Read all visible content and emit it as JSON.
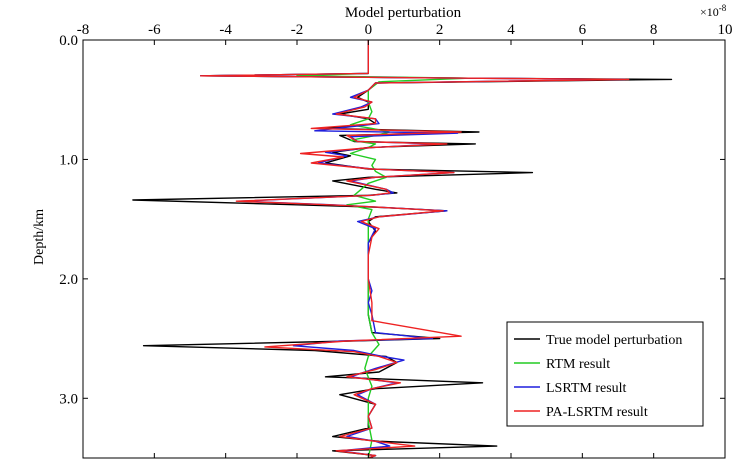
{
  "chart_data": {
    "type": "line",
    "xlabel": "Model perturbation",
    "x_exponent_base": "×10",
    "x_exponent_power": "-8",
    "ylabel": "Depth/km",
    "xlim": [
      -8,
      10
    ],
    "ylim": [
      0.0,
      3.5
    ],
    "y_inverted": true,
    "x_axis_position": "top",
    "grid": false,
    "legend_position": "bottom-right",
    "x_ticks": [
      -8,
      -6,
      -4,
      -2,
      0,
      2,
      4,
      6,
      8,
      10
    ],
    "x_tick_labels": [
      "-8",
      "-6",
      "-4",
      "-2",
      "0",
      "2",
      "4",
      "6",
      "8",
      "10"
    ],
    "y_ticks": [
      0.0,
      1.0,
      2.0,
      3.0
    ],
    "y_tick_labels": [
      "0.0",
      "1.0",
      "2.0",
      "3.0"
    ],
    "series": [
      {
        "name": "True model perturbation",
        "color": "#000000",
        "points": [
          [
            0,
            0
          ],
          [
            0,
            0.28
          ],
          [
            -4.7,
            0.3
          ],
          [
            2.8,
            0.32
          ],
          [
            8.5,
            0.33
          ],
          [
            0.2,
            0.36
          ],
          [
            0,
            0.42
          ],
          [
            -0.3,
            0.48
          ],
          [
            0,
            0.52
          ],
          [
            0,
            0.58
          ],
          [
            -0.8,
            0.62
          ],
          [
            0,
            0.66
          ],
          [
            0.2,
            0.7
          ],
          [
            -1.2,
            0.74
          ],
          [
            3.1,
            0.77
          ],
          [
            -0.8,
            0.8
          ],
          [
            -0.4,
            0.85
          ],
          [
            3.0,
            0.87
          ],
          [
            0,
            0.9
          ],
          [
            -1.0,
            0.94
          ],
          [
            -0.5,
            0.97
          ],
          [
            -1.2,
            1.03
          ],
          [
            0,
            1.08
          ],
          [
            4.6,
            1.11
          ],
          [
            0,
            1.15
          ],
          [
            -1.0,
            1.18
          ],
          [
            0.2,
            1.25
          ],
          [
            0.8,
            1.28
          ],
          [
            0,
            1.3
          ],
          [
            -6.6,
            1.34
          ],
          [
            -2.0,
            1.38
          ],
          [
            0.2,
            1.4
          ],
          [
            2.2,
            1.43
          ],
          [
            0.2,
            1.48
          ],
          [
            0,
            1.52
          ],
          [
            0.2,
            1.6
          ],
          [
            0,
            1.7
          ],
          [
            0,
            2.0
          ],
          [
            0,
            2.3
          ],
          [
            0.1,
            2.45
          ],
          [
            2.0,
            2.5
          ],
          [
            -0.5,
            2.52
          ],
          [
            -6.3,
            2.56
          ],
          [
            -1.5,
            2.6
          ],
          [
            0.5,
            2.65
          ],
          [
            0.8,
            2.7
          ],
          [
            0.3,
            2.78
          ],
          [
            -1.2,
            2.82
          ],
          [
            3.2,
            2.87
          ],
          [
            0.2,
            2.92
          ],
          [
            -0.8,
            2.97
          ],
          [
            0.2,
            3.05
          ],
          [
            0,
            3.15
          ],
          [
            0,
            3.25
          ],
          [
            -1.0,
            3.32
          ],
          [
            0.3,
            3.36
          ],
          [
            3.6,
            3.4
          ],
          [
            -1.0,
            3.44
          ],
          [
            0.2,
            3.48
          ],
          [
            0,
            3.5
          ]
        ]
      },
      {
        "name": "RTM result",
        "color": "#22cc22",
        "points": [
          [
            0,
            0
          ],
          [
            0,
            0.28
          ],
          [
            -2.0,
            0.3
          ],
          [
            2.8,
            0.32
          ],
          [
            0.3,
            0.35
          ],
          [
            0,
            0.42
          ],
          [
            0,
            0.52
          ],
          [
            0.1,
            0.6
          ],
          [
            0,
            0.66
          ],
          [
            -0.5,
            0.71
          ],
          [
            0.1,
            0.74
          ],
          [
            0.6,
            0.77
          ],
          [
            0.2,
            0.8
          ],
          [
            -0.5,
            0.84
          ],
          [
            0.2,
            0.87
          ],
          [
            0,
            0.9
          ],
          [
            -0.5,
            0.95
          ],
          [
            0.2,
            1.0
          ],
          [
            0.1,
            1.05
          ],
          [
            0.2,
            1.1
          ],
          [
            0.5,
            1.15
          ],
          [
            0,
            1.2
          ],
          [
            -0.4,
            1.3
          ],
          [
            0.2,
            1.35
          ],
          [
            -0.6,
            1.38
          ],
          [
            0.1,
            1.42
          ],
          [
            0,
            1.5
          ],
          [
            0,
            1.7
          ],
          [
            0,
            2.0
          ],
          [
            0,
            2.3
          ],
          [
            0.1,
            2.45
          ],
          [
            0.3,
            2.55
          ],
          [
            0,
            2.65
          ],
          [
            -0.1,
            2.75
          ],
          [
            0.1,
            2.9
          ],
          [
            0,
            3.0
          ],
          [
            0,
            3.2
          ],
          [
            0.1,
            3.35
          ],
          [
            0,
            3.5
          ]
        ]
      },
      {
        "name": "LSRTM result",
        "color": "#1f1fdd",
        "points": [
          [
            0,
            0
          ],
          [
            0,
            0.28
          ],
          [
            -4.7,
            0.3
          ],
          [
            2.8,
            0.32
          ],
          [
            7.2,
            0.33
          ],
          [
            0.2,
            0.36
          ],
          [
            0,
            0.42
          ],
          [
            -0.5,
            0.48
          ],
          [
            0.1,
            0.52
          ],
          [
            -0.2,
            0.56
          ],
          [
            -1.0,
            0.62
          ],
          [
            0.2,
            0.66
          ],
          [
            0.3,
            0.7
          ],
          [
            -1.5,
            0.76
          ],
          [
            2.5,
            0.78
          ],
          [
            -0.5,
            0.81
          ],
          [
            -0.3,
            0.85
          ],
          [
            2.0,
            0.87
          ],
          [
            0.1,
            0.9
          ],
          [
            -1.2,
            0.94
          ],
          [
            -0.6,
            0.97
          ],
          [
            -1.4,
            1.03
          ],
          [
            0.1,
            1.08
          ],
          [
            2.4,
            1.11
          ],
          [
            0.2,
            1.15
          ],
          [
            -0.5,
            1.18
          ],
          [
            0.5,
            1.25
          ],
          [
            0.7,
            1.28
          ],
          [
            0.1,
            1.3
          ],
          [
            -3.6,
            1.35
          ],
          [
            -1.0,
            1.38
          ],
          [
            0.3,
            1.4
          ],
          [
            2.2,
            1.43
          ],
          [
            0.3,
            1.48
          ],
          [
            -0.3,
            1.52
          ],
          [
            0.2,
            1.58
          ],
          [
            0,
            1.7
          ],
          [
            0,
            2.0
          ],
          [
            0.1,
            2.1
          ],
          [
            0,
            2.2
          ],
          [
            0.1,
            2.3
          ],
          [
            0.2,
            2.45
          ],
          [
            1.8,
            2.5
          ],
          [
            -0.8,
            2.52
          ],
          [
            -2.1,
            2.56
          ],
          [
            -0.4,
            2.6
          ],
          [
            0.4,
            2.65
          ],
          [
            1.0,
            2.68
          ],
          [
            0.2,
            2.75
          ],
          [
            -0.5,
            2.82
          ],
          [
            0.8,
            2.87
          ],
          [
            0.1,
            2.92
          ],
          [
            -0.3,
            2.97
          ],
          [
            0.2,
            3.05
          ],
          [
            0,
            3.15
          ],
          [
            0.1,
            3.25
          ],
          [
            -0.6,
            3.32
          ],
          [
            0.2,
            3.36
          ],
          [
            0.6,
            3.4
          ],
          [
            -0.8,
            3.44
          ],
          [
            0.2,
            3.48
          ],
          [
            0,
            3.5
          ]
        ]
      },
      {
        "name": "PA-LSRTM result",
        "color": "#ee2222",
        "points": [
          [
            0,
            0
          ],
          [
            0,
            0.28
          ],
          [
            -4.7,
            0.3
          ],
          [
            2.8,
            0.32
          ],
          [
            7.3,
            0.33
          ],
          [
            0.2,
            0.36
          ],
          [
            0,
            0.42
          ],
          [
            -0.4,
            0.48
          ],
          [
            0.1,
            0.52
          ],
          [
            -0.1,
            0.56
          ],
          [
            -0.9,
            0.62
          ],
          [
            0.2,
            0.66
          ],
          [
            0.2,
            0.7
          ],
          [
            -1.6,
            0.74
          ],
          [
            2.6,
            0.77
          ],
          [
            -0.6,
            0.8
          ],
          [
            -0.3,
            0.85
          ],
          [
            2.2,
            0.87
          ],
          [
            0.1,
            0.9
          ],
          [
            -1.9,
            0.95
          ],
          [
            -0.7,
            0.98
          ],
          [
            -1.6,
            1.03
          ],
          [
            0.1,
            1.08
          ],
          [
            2.4,
            1.11
          ],
          [
            0.2,
            1.15
          ],
          [
            -0.6,
            1.18
          ],
          [
            0.5,
            1.25
          ],
          [
            0.6,
            1.28
          ],
          [
            0.1,
            1.3
          ],
          [
            -3.7,
            1.35
          ],
          [
            -1.1,
            1.38
          ],
          [
            0.3,
            1.4
          ],
          [
            2.1,
            1.43
          ],
          [
            0.3,
            1.48
          ],
          [
            -0.2,
            1.52
          ],
          [
            0.3,
            1.58
          ],
          [
            0.1,
            1.65
          ],
          [
            0,
            1.8
          ],
          [
            0,
            2.0
          ],
          [
            0.1,
            2.2
          ],
          [
            0.1,
            2.35
          ],
          [
            2.6,
            2.48
          ],
          [
            -0.6,
            2.52
          ],
          [
            -2.9,
            2.57
          ],
          [
            -0.4,
            2.61
          ],
          [
            0.3,
            2.65
          ],
          [
            0.8,
            2.7
          ],
          [
            0.2,
            2.76
          ],
          [
            -0.6,
            2.82
          ],
          [
            0.9,
            2.87
          ],
          [
            0.1,
            2.92
          ],
          [
            -0.4,
            2.97
          ],
          [
            0.2,
            3.05
          ],
          [
            0,
            3.15
          ],
          [
            0.1,
            3.25
          ],
          [
            -0.8,
            3.32
          ],
          [
            0.2,
            3.36
          ],
          [
            1.3,
            3.4
          ],
          [
            -0.9,
            3.44
          ],
          [
            0.2,
            3.48
          ],
          [
            0,
            3.5
          ]
        ]
      }
    ]
  }
}
